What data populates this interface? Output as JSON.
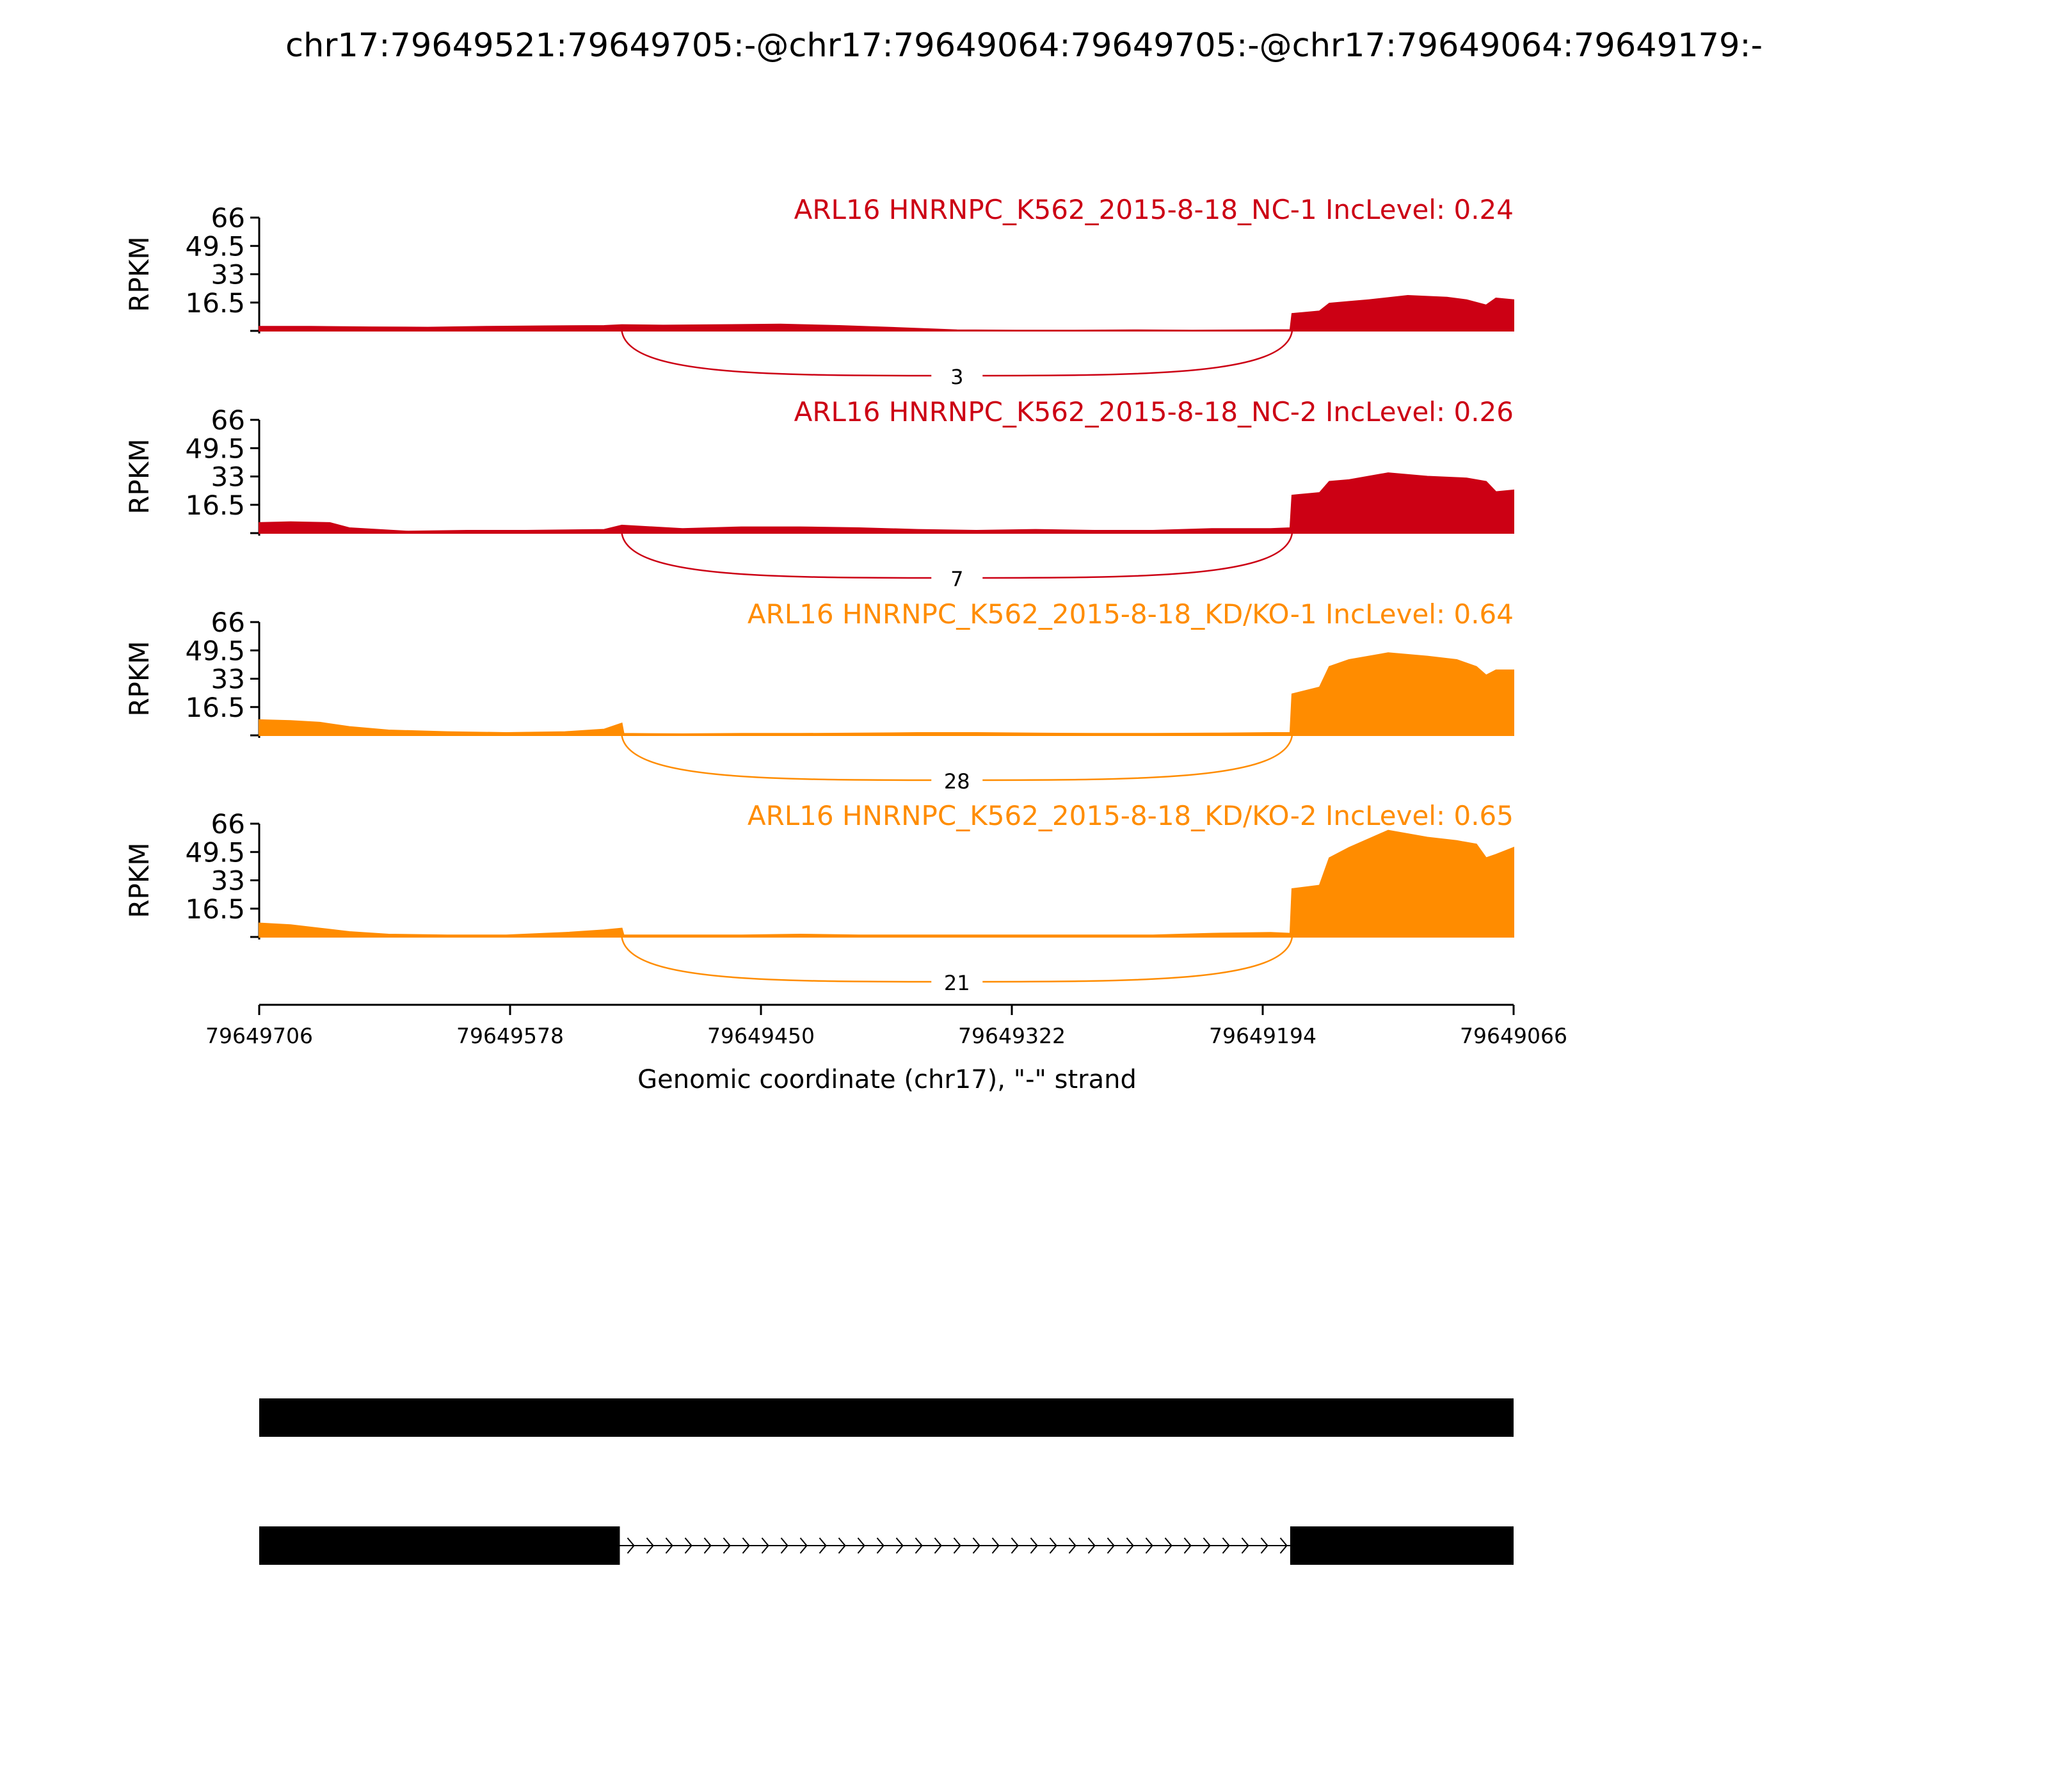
{
  "title": "chr17:79649521:79649705:-@chr17:79649064:79649705:-@chr17:79649064:79649179:-",
  "colors": {
    "nc": "#cc0014",
    "kd": "#ff8c00",
    "axis": "#000000",
    "gene": "#000000"
  },
  "chart_data": {
    "type": "area",
    "title": "chr17:79649521:79649705:-@chr17:79649064:79649705:-@chr17:79649064:79649179:-",
    "xlabel": "Genomic coordinate (chr17), \"-\" strand",
    "ylabel": "RPKM",
    "xlim": [
      79649706,
      79649066
    ],
    "xticks": [
      "79649706",
      "79649578",
      "79649450",
      "79649322",
      "79649194",
      "79649066"
    ],
    "ylim": [
      0,
      66
    ],
    "yticks": [
      "66",
      "49.5",
      "33",
      "16.5"
    ],
    "series": [
      {
        "name": "ARL16 HNRNPC_K562_2015-8-18_NC-1 IncLevel: 0.24",
        "color": "#cc0014",
        "x": [
          79649706,
          79649680,
          79649650,
          79649620,
          79649590,
          79649560,
          79649530,
          79649521,
          79649500,
          79649470,
          79649440,
          79649410,
          79649380,
          79649350,
          79649320,
          79649290,
          79649260,
          79649230,
          79649200,
          79649180,
          79649179,
          79649165,
          79649160,
          79649150,
          79649140,
          79649120,
          79649100,
          79649090,
          79649080,
          79649075,
          79649066
        ],
        "y": [
          2.5,
          2.5,
          2.2,
          2.0,
          2.5,
          2.8,
          3.0,
          3.5,
          3.2,
          3.5,
          3.8,
          3.0,
          1.8,
          0.5,
          0.3,
          0.3,
          0.5,
          0.3,
          0.5,
          0.6,
          10.0,
          11.5,
          16.0,
          17.0,
          18.0,
          20.5,
          19.5,
          18.0,
          15.0,
          19.0,
          18.0
        ],
        "junction_label": "3"
      },
      {
        "name": "ARL16 HNRNPC_K562_2015-8-18_NC-2 IncLevel: 0.26",
        "color": "#cc0014",
        "x": [
          79649706,
          79649690,
          79649670,
          79649660,
          79649630,
          79649600,
          79649570,
          79649530,
          79649521,
          79649490,
          79649460,
          79649430,
          79649400,
          79649370,
          79649340,
          79649310,
          79649280,
          79649250,
          79649220,
          79649190,
          79649180,
          79649179,
          79649165,
          79649160,
          79649150,
          79649130,
          79649110,
          79649090,
          79649080,
          79649075,
          79649066
        ],
        "y": [
          6.0,
          6.5,
          6.0,
          3.0,
          1.0,
          1.5,
          1.5,
          2.0,
          4.5,
          2.5,
          3.5,
          3.5,
          3.0,
          2.0,
          1.5,
          2.0,
          1.5,
          1.5,
          2.5,
          2.5,
          3.0,
          22.0,
          23.5,
          30.0,
          31.0,
          35.0,
          33.0,
          32.0,
          30.0,
          24.0,
          25.0
        ],
        "junction_label": "7"
      },
      {
        "name": "ARL16 HNRNPC_K562_2015-8-18_KD/KO-1 IncLevel: 0.64",
        "color": "#ff8c00",
        "x": [
          79649706,
          79649690,
          79649675,
          79649660,
          79649640,
          79649610,
          79649580,
          79649550,
          79649530,
          79649521,
          79649520,
          79649490,
          79649460,
          79649430,
          79649400,
          79649370,
          79649340,
          79649310,
          79649280,
          79649250,
          79649220,
          79649190,
          79649180,
          79649179,
          79649165,
          79649160,
          79649150,
          79649130,
          79649110,
          79649095,
          79649085,
          79649080,
          79649075,
          79649066
        ],
        "y": [
          9.0,
          8.5,
          7.5,
          5.0,
          3.0,
          2.0,
          1.5,
          2.0,
          3.5,
          7.0,
          1.0,
          0.8,
          1.0,
          1.0,
          1.2,
          1.5,
          1.5,
          1.2,
          1.0,
          1.0,
          1.2,
          1.5,
          1.5,
          24.0,
          28.0,
          40.0,
          44.0,
          48.0,
          46.0,
          44.0,
          40.0,
          35.0,
          38.0,
          38.0
        ],
        "junction_label": "28"
      },
      {
        "name": "ARL16 HNRNPC_K562_2015-8-18_KD/KO-2 IncLevel: 0.65",
        "color": "#ff8c00",
        "x": [
          79649706,
          79649690,
          79649675,
          79649660,
          79649640,
          79649610,
          79649580,
          79649550,
          79649530,
          79649521,
          79649520,
          79649490,
          79649460,
          79649430,
          79649400,
          79649370,
          79649340,
          79649310,
          79649280,
          79649250,
          79649220,
          79649190,
          79649180,
          79649179,
          79649165,
          79649160,
          79649150,
          79649130,
          79649110,
          79649095,
          79649085,
          79649080,
          79649075,
          79649066
        ],
        "y": [
          8.0,
          7.0,
          5.0,
          3.0,
          1.5,
          1.0,
          1.0,
          2.5,
          4.0,
          5.0,
          1.0,
          1.0,
          1.0,
          1.5,
          1.0,
          1.0,
          1.0,
          1.0,
          1.0,
          1.0,
          2.0,
          2.5,
          2.0,
          28.0,
          30.0,
          46.0,
          52.0,
          62.0,
          58.0,
          56.0,
          54.0,
          46.0,
          48.0,
          52.0
        ],
        "junction_label": "21"
      }
    ],
    "junction": {
      "start": 79649521,
      "end": 79649179
    },
    "gene_models": [
      {
        "exons": [
          [
            79649706,
            79649066
          ]
        ]
      },
      {
        "exons": [
          [
            79649706,
            79649522
          ],
          [
            79649180,
            79649066
          ]
        ]
      }
    ]
  }
}
